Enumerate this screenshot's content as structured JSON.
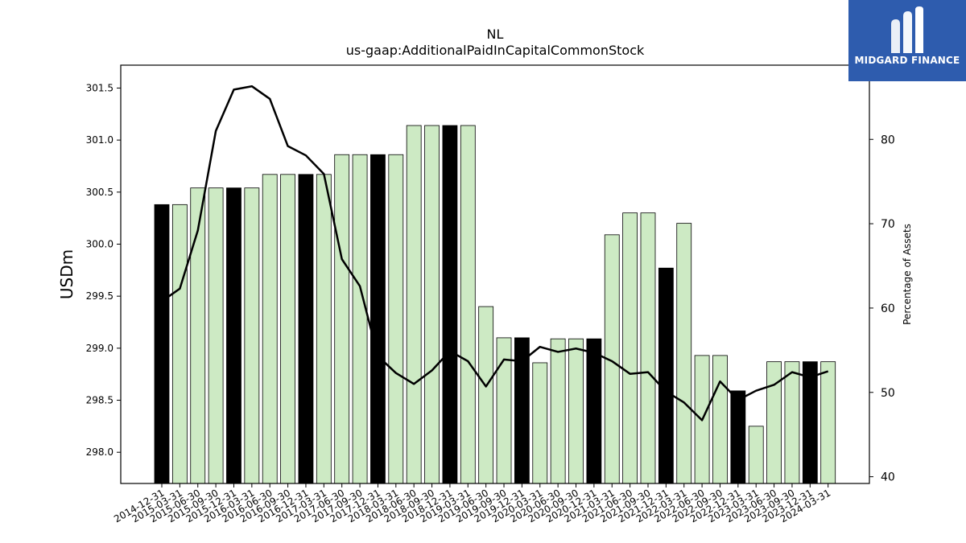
{
  "brand": {
    "name": "MIDGARD FINANCE",
    "accent": "#2e5cae"
  },
  "chart_data": {
    "type": "bar",
    "title": "NL",
    "subtitle": "us-gaap:AdditionalPaidInCapitalCommonStock",
    "ylabel": "USDm",
    "y2label": "Percentage of Assets",
    "ylim": [
      297.7,
      301.72
    ],
    "y2lim": [
      39.2,
      88.8
    ],
    "yticks": [
      "298.0",
      "298.5",
      "299.0",
      "299.5",
      "300.0",
      "300.5",
      "301.0",
      "301.5"
    ],
    "y2ticks": [
      "40",
      "50",
      "60",
      "70",
      "80"
    ],
    "grid": false,
    "bar_colors": {
      "default": "#cdeac4",
      "highlight": "#000000",
      "edge": "#000000"
    },
    "line_color": "#000000",
    "categories": [
      "2014-12-31",
      "2015-03-31",
      "2015-06-30",
      "2015-09-30",
      "2015-12-31",
      "2016-03-31",
      "2016-06-30",
      "2016-09-30",
      "2016-12-31",
      "2017-03-31",
      "2017-06-30",
      "2017-09-30",
      "2017-12-31",
      "2018-03-31",
      "2018-06-30",
      "2018-09-30",
      "2018-12-31",
      "2019-03-31",
      "2019-06-30",
      "2019-09-30",
      "2019-12-31",
      "2020-03-31",
      "2020-06-30",
      "2020-09-30",
      "2020-12-31",
      "2021-03-31",
      "2021-06-30",
      "2021-09-30",
      "2021-12-31",
      "2022-03-31",
      "2022-06-30",
      "2022-09-30",
      "2022-12-31",
      "2023-03-31",
      "2023-06-30",
      "2023-09-30",
      "2023-12-31",
      "2024-03-31"
    ],
    "series": [
      {
        "type": "bar",
        "axis": "left",
        "values": [
          300.38,
          300.38,
          300.54,
          300.54,
          300.54,
          300.54,
          300.67,
          300.67,
          300.67,
          300.67,
          300.86,
          300.86,
          300.86,
          300.86,
          301.14,
          301.14,
          301.14,
          301.14,
          299.4,
          299.1,
          299.1,
          298.86,
          299.09,
          299.09,
          299.09,
          300.09,
          300.3,
          300.3,
          299.77,
          300.2,
          298.93,
          298.93,
          298.59,
          298.25,
          298.87,
          298.87,
          298.87,
          298.87
        ],
        "highlight": [
          true,
          false,
          false,
          false,
          true,
          false,
          false,
          false,
          true,
          false,
          false,
          false,
          true,
          false,
          false,
          false,
          true,
          false,
          false,
          false,
          true,
          false,
          false,
          false,
          true,
          false,
          false,
          false,
          true,
          false,
          false,
          false,
          true,
          false,
          false,
          false,
          true,
          false
        ]
      },
      {
        "type": "line",
        "axis": "right",
        "values": [
          60.8,
          62.3,
          69.2,
          81.0,
          85.9,
          86.3,
          84.8,
          79.2,
          78.1,
          75.9,
          65.8,
          62.6,
          54.3,
          52.3,
          51.0,
          52.6,
          54.9,
          53.7,
          50.7,
          53.9,
          53.7,
          55.4,
          54.8,
          55.2,
          54.7,
          53.7,
          52.2,
          52.4,
          50.1,
          48.8,
          46.7,
          51.3,
          49.1,
          50.2,
          50.9,
          52.4,
          51.8,
          52.5
        ]
      }
    ]
  }
}
